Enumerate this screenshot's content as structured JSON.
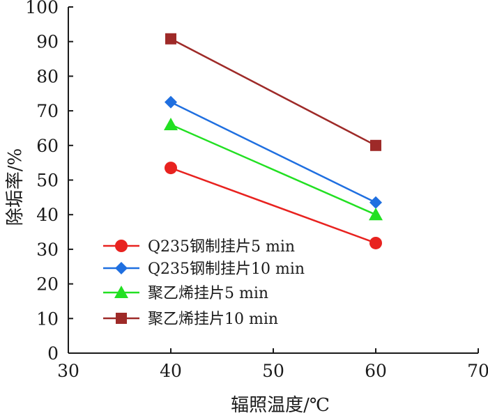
{
  "chart_data": {
    "type": "line",
    "title": "",
    "xlabel": "辐照温度/℃",
    "ylabel": "除垢率/%",
    "xlim": [
      30,
      70
    ],
    "ylim": [
      0,
      100
    ],
    "xticks": [
      30,
      40,
      50,
      60,
      70
    ],
    "yticks": [
      0,
      10,
      20,
      30,
      40,
      50,
      60,
      70,
      80,
      90,
      100
    ],
    "grid": false,
    "legend_position": "bottom-left",
    "x": [
      40,
      60
    ],
    "series": [
      {
        "name": "Q235钢制挂片5 min",
        "values": [
          53.5,
          31.8
        ],
        "color": "#e8221f",
        "marker": "circle"
      },
      {
        "name": "Q235钢制挂片10 min",
        "values": [
          72.5,
          43.5
        ],
        "color": "#1f6fe0",
        "marker": "diamond"
      },
      {
        "name": "聚乙烯挂片5 min",
        "values": [
          66.0,
          40.0
        ],
        "color": "#22e022",
        "marker": "triangle"
      },
      {
        "name": "聚乙烯挂片10 min",
        "values": [
          90.8,
          60.0
        ],
        "color": "#9e2a28",
        "marker": "square"
      }
    ]
  }
}
